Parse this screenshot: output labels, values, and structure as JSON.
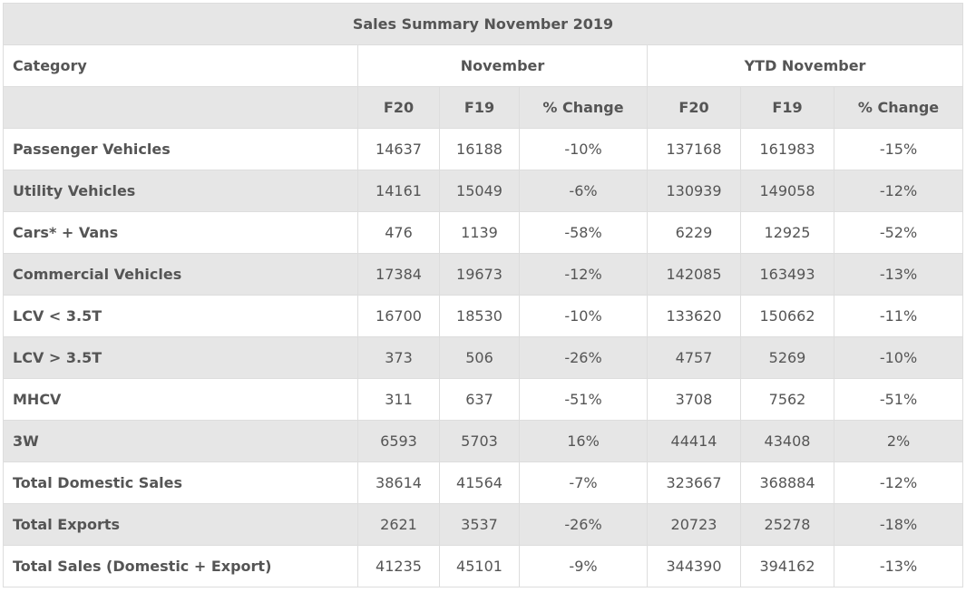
{
  "title": "Sales Summary November 2019",
  "header": {
    "category": "Category",
    "groups": [
      "November",
      "YTD November"
    ],
    "columns": [
      "F20",
      "F19",
      "% Change",
      "F20",
      "F19",
      "% Change"
    ]
  },
  "rows": [
    [
      "Passenger Vehicles",
      14637,
      16188,
      "-10%",
      137168,
      161983,
      "-15%"
    ],
    [
      "Utility Vehicles",
      14161,
      15049,
      "-6%",
      130939,
      149058,
      "-12%"
    ],
    [
      "Cars* + Vans",
      476,
      1139,
      "-58%",
      6229,
      12925,
      "-52%"
    ],
    [
      "Commercial Vehicles",
      17384,
      19673,
      "-12%",
      142085,
      163493,
      "-13%"
    ],
    [
      "LCV < 3.5T",
      16700,
      18530,
      "-10%",
      133620,
      150662,
      "-11%"
    ],
    [
      "LCV > 3.5T",
      373,
      506,
      "-26%",
      4757,
      5269,
      "-10%"
    ],
    [
      "MHCV",
      311,
      637,
      "-51%",
      3708,
      7562,
      "-51%"
    ],
    [
      "3W",
      6593,
      5703,
      "16%",
      44414,
      43408,
      "2%"
    ],
    [
      "Total Domestic Sales",
      38614,
      41564,
      "-7%",
      323667,
      368884,
      "-12%"
    ],
    [
      "Total Exports",
      2621,
      3537,
      "-26%",
      20723,
      25278,
      "-18%"
    ],
    [
      "Total Sales (Domestic + Export)",
      41235,
      45101,
      "-9%",
      344390,
      394162,
      "-13%"
    ]
  ]
}
